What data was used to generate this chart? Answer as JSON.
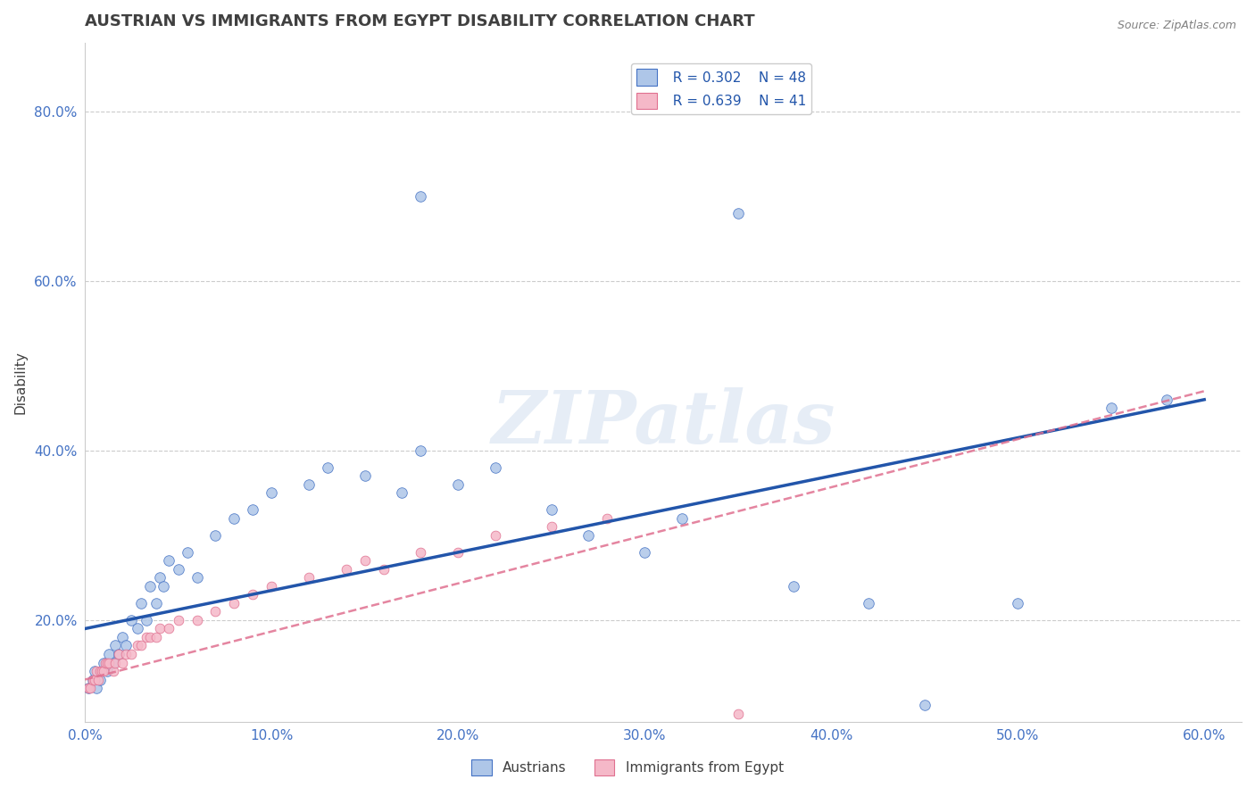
{
  "title": "AUSTRIAN VS IMMIGRANTS FROM EGYPT DISABILITY CORRELATION CHART",
  "source": "Source: ZipAtlas.com",
  "xlim": [
    0.0,
    0.62
  ],
  "ylim": [
    0.08,
    0.88
  ],
  "x_tick_vals": [
    0.0,
    0.1,
    0.2,
    0.3,
    0.4,
    0.5,
    0.6
  ],
  "y_tick_vals": [
    0.2,
    0.4,
    0.6,
    0.8
  ],
  "legend_r1": "R = 0.302",
  "legend_n1": "N = 48",
  "legend_r2": "R = 0.639",
  "legend_n2": "N = 41",
  "legend_label1": "Austrians",
  "legend_label2": "Immigrants from Egypt",
  "watermark": "ZIPatlas",
  "color_blue_fill": "#aec6e8",
  "color_blue_edge": "#4472C4",
  "color_blue_line": "#2255aa",
  "color_pink_fill": "#f5b8c8",
  "color_pink_edge": "#e07090",
  "color_pink_line": "#e07090",
  "background_color": "#ffffff",
  "grid_color": "#cccccc",
  "title_color": "#404040",
  "tick_color": "#4472C4",
  "austrians_x": [
    0.002,
    0.004,
    0.005,
    0.006,
    0.008,
    0.01,
    0.012,
    0.013,
    0.015,
    0.016,
    0.018,
    0.02,
    0.022,
    0.025,
    0.028,
    0.03,
    0.033,
    0.035,
    0.038,
    0.04,
    0.042,
    0.045,
    0.05,
    0.055,
    0.06,
    0.07,
    0.08,
    0.09,
    0.1,
    0.12,
    0.13,
    0.15,
    0.17,
    0.18,
    0.2,
    0.22,
    0.25,
    0.27,
    0.3,
    0.32,
    0.38,
    0.42,
    0.45,
    0.5,
    0.55,
    0.58,
    0.18,
    0.35
  ],
  "austrians_y": [
    0.12,
    0.13,
    0.14,
    0.12,
    0.13,
    0.15,
    0.14,
    0.16,
    0.15,
    0.17,
    0.16,
    0.18,
    0.17,
    0.2,
    0.19,
    0.22,
    0.2,
    0.24,
    0.22,
    0.25,
    0.24,
    0.27,
    0.26,
    0.28,
    0.25,
    0.3,
    0.32,
    0.33,
    0.35,
    0.36,
    0.38,
    0.37,
    0.35,
    0.4,
    0.36,
    0.38,
    0.33,
    0.3,
    0.28,
    0.32,
    0.24,
    0.22,
    0.1,
    0.22,
    0.45,
    0.46,
    0.7,
    0.68
  ],
  "egypt_x": [
    0.002,
    0.003,
    0.004,
    0.005,
    0.006,
    0.007,
    0.008,
    0.009,
    0.01,
    0.011,
    0.012,
    0.013,
    0.015,
    0.016,
    0.018,
    0.02,
    0.022,
    0.025,
    0.028,
    0.03,
    0.033,
    0.035,
    0.038,
    0.04,
    0.045,
    0.05,
    0.06,
    0.07,
    0.08,
    0.09,
    0.1,
    0.12,
    0.14,
    0.15,
    0.16,
    0.18,
    0.2,
    0.22,
    0.25,
    0.28,
    0.35
  ],
  "egypt_y": [
    0.12,
    0.12,
    0.13,
    0.13,
    0.14,
    0.13,
    0.14,
    0.14,
    0.14,
    0.15,
    0.15,
    0.15,
    0.14,
    0.15,
    0.16,
    0.15,
    0.16,
    0.16,
    0.17,
    0.17,
    0.18,
    0.18,
    0.18,
    0.19,
    0.19,
    0.2,
    0.2,
    0.21,
    0.22,
    0.23,
    0.24,
    0.25,
    0.26,
    0.27,
    0.26,
    0.28,
    0.28,
    0.3,
    0.31,
    0.32,
    0.09
  ]
}
